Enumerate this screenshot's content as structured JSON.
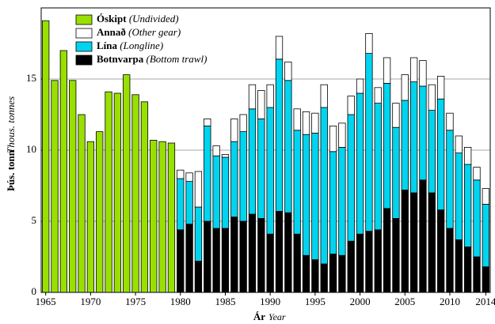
{
  "chart_data": {
    "type": "stacked-bar",
    "y_label": "Þús. tonn",
    "y_label_translation": "Thous. tonnes",
    "x_label": "Ár",
    "x_label_translation": "Year",
    "x": [
      1965,
      1966,
      1967,
      1968,
      1969,
      1970,
      1971,
      1972,
      1973,
      1974,
      1975,
      1976,
      1977,
      1978,
      1979,
      1980,
      1981,
      1982,
      1983,
      1984,
      1985,
      1986,
      1987,
      1988,
      1989,
      1990,
      1991,
      1992,
      1993,
      1994,
      1995,
      1996,
      1997,
      1998,
      1999,
      2000,
      2001,
      2002,
      2003,
      2004,
      2005,
      2006,
      2007,
      2008,
      2009,
      2010,
      2011,
      2012,
      2013,
      2014
    ],
    "xlim": [
      1964.5,
      2014.5
    ],
    "xticks": [
      1965,
      1970,
      1975,
      1980,
      1985,
      1990,
      1995,
      2000,
      2005,
      2010,
      2014
    ],
    "ylim": [
      0,
      20
    ],
    "yticks": [
      0,
      5,
      10,
      15
    ],
    "grid": true,
    "legend": "top-left",
    "series": [
      {
        "name": "Óskipt",
        "translation": "(Undivided)",
        "color": "#99e000",
        "values": [
          19.1,
          14.9,
          17.0,
          14.9,
          12.5,
          10.6,
          11.3,
          14.1,
          14.0,
          15.3,
          13.9,
          13.4,
          10.7,
          10.6,
          10.5,
          null,
          null,
          null,
          null,
          null,
          null,
          null,
          null,
          null,
          null,
          null,
          null,
          null,
          null,
          null,
          null,
          null,
          null,
          null,
          null,
          null,
          null,
          null,
          null,
          null,
          null,
          null,
          null,
          null,
          null,
          null,
          null,
          null,
          null,
          null
        ]
      },
      {
        "name": "Annað",
        "translation": "(Other gear)",
        "color": "#ffffff",
        "values": [
          null,
          null,
          null,
          null,
          null,
          null,
          null,
          null,
          null,
          null,
          null,
          null,
          null,
          null,
          null,
          0.6,
          0.6,
          2.5,
          0.5,
          0.7,
          0.2,
          1.6,
          1.2,
          1.7,
          2.0,
          1.6,
          1.6,
          1.3,
          1.5,
          1.6,
          1.4,
          1.6,
          1.8,
          1.7,
          1.3,
          1.0,
          1.4,
          1.1,
          1.8,
          1.7,
          1.8,
          1.7,
          1.8,
          1.8,
          1.6,
          1.2,
          1.2,
          1.2,
          0.9,
          1.1
        ]
      },
      {
        "name": "Lína",
        "translation": "(Longline)",
        "color": "#00d4ef",
        "values": [
          null,
          null,
          null,
          null,
          null,
          null,
          null,
          null,
          null,
          null,
          null,
          null,
          null,
          null,
          null,
          3.6,
          3.0,
          3.8,
          6.7,
          5.1,
          5.0,
          5.3,
          6.3,
          7.4,
          7.0,
          8.9,
          10.7,
          9.3,
          7.3,
          8.5,
          8.9,
          11.0,
          7.2,
          7.6,
          8.9,
          9.9,
          12.5,
          8.9,
          8.8,
          6.4,
          6.3,
          7.8,
          6.6,
          5.8,
          7.8,
          6.9,
          6.1,
          5.8,
          5.4,
          4.4
        ]
      },
      {
        "name": "Botnvarpa",
        "translation": "(Bottom trawl)",
        "color": "#000000",
        "values": [
          null,
          null,
          null,
          null,
          null,
          null,
          null,
          null,
          null,
          null,
          null,
          null,
          null,
          null,
          null,
          4.4,
          4.8,
          2.2,
          5.0,
          4.5,
          4.5,
          5.3,
          5.0,
          5.5,
          5.2,
          4.1,
          5.7,
          5.6,
          4.1,
          2.6,
          2.3,
          2.0,
          2.7,
          2.6,
          3.6,
          4.1,
          4.3,
          4.4,
          5.9,
          5.2,
          7.2,
          7.0,
          7.9,
          7.0,
          5.8,
          4.5,
          3.7,
          3.2,
          2.5,
          1.8
        ]
      }
    ]
  }
}
